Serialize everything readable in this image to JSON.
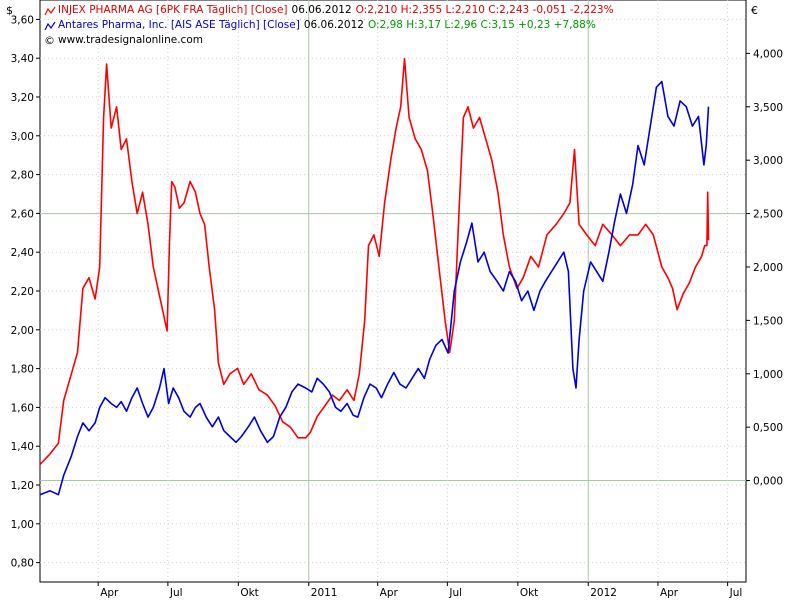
{
  "legend": {
    "row1": {
      "name": "INJEX PHARMA AG [6PK FRA  Täglich] [Close]",
      "date": "06.06.2012",
      "ohlc": "O:2,210 H:2,355 L:2,210 C:2,243 -0,051 -2,223%"
    },
    "row2": {
      "name": "Antares Pharma, Inc. [AIS ASE  Täglich] [Close]",
      "date": "06.06.2012",
      "ohlc": "O:2,98 H:3,17 L:2,96 C:3,15 +0,23 +7,88%"
    },
    "watermark": "www.tradesignalonline.com"
  },
  "colors": {
    "injex": "#ff0000",
    "antares": "#0000dd",
    "background": "#ffffff",
    "grid": "#c8d8c8"
  },
  "chart_data": {
    "type": "line",
    "title": "",
    "left_axis": {
      "unit": "$",
      "range": [
        0.7,
        3.7
      ],
      "ticks": [
        "0,80",
        "1,00",
        "1,20",
        "1,40",
        "1,60",
        "1,80",
        "2,00",
        "2,20",
        "2,40",
        "2,60",
        "2,80",
        "3,00",
        "3,20",
        "3,40",
        "3,60"
      ]
    },
    "right_axis": {
      "unit": "€",
      "range": [
        -0.95,
        4.5
      ],
      "ticks": [
        "0,000",
        "0,500",
        "1,000",
        "1,500",
        "2,000",
        "2,500",
        "3,000",
        "3,500",
        "4,000"
      ]
    },
    "x_axis": {
      "labels": [
        "Apr",
        "Jul",
        "Okt",
        "2011",
        "Apr",
        "Jul",
        "Okt",
        "2012",
        "Apr",
        "Jul"
      ],
      "label_dates": [
        "2010-04-01",
        "2010-07-01",
        "2010-10-01",
        "2011-01-01",
        "2011-04-01",
        "2011-07-01",
        "2011-10-01",
        "2012-01-01",
        "2012-04-01",
        "2012-07-01"
      ],
      "range": [
        "2010-01-15",
        "2012-07-25"
      ]
    },
    "series": [
      {
        "name": "INJEX PHARMA AG [6PK FRA  Täglich] [Close]",
        "axis": "right",
        "points": [
          [
            "2010-01-15",
            0.15
          ],
          [
            "2010-01-28",
            0.25
          ],
          [
            "2010-02-08",
            0.35
          ],
          [
            "2010-02-15",
            0.75
          ],
          [
            "2010-02-25",
            1.0
          ],
          [
            "2010-03-05",
            1.2
          ],
          [
            "2010-03-12",
            1.8
          ],
          [
            "2010-03-20",
            1.9
          ],
          [
            "2010-03-28",
            1.7
          ],
          [
            "2010-04-03",
            2.0
          ],
          [
            "2010-04-08",
            3.4
          ],
          [
            "2010-04-12",
            3.9
          ],
          [
            "2010-04-18",
            3.3
          ],
          [
            "2010-04-25",
            3.5
          ],
          [
            "2010-05-01",
            3.1
          ],
          [
            "2010-05-08",
            3.2
          ],
          [
            "2010-05-15",
            2.8
          ],
          [
            "2010-05-22",
            2.5
          ],
          [
            "2010-05-29",
            2.7
          ],
          [
            "2010-06-05",
            2.4
          ],
          [
            "2010-06-12",
            2.0
          ],
          [
            "2010-06-18",
            1.8
          ],
          [
            "2010-06-24",
            1.6
          ],
          [
            "2010-06-30",
            1.4
          ],
          [
            "2010-07-03",
            2.2
          ],
          [
            "2010-07-06",
            2.8
          ],
          [
            "2010-07-10",
            2.75
          ],
          [
            "2010-07-16",
            2.55
          ],
          [
            "2010-07-22",
            2.6
          ],
          [
            "2010-07-30",
            2.8
          ],
          [
            "2010-08-06",
            2.7
          ],
          [
            "2010-08-12",
            2.5
          ],
          [
            "2010-08-18",
            2.4
          ],
          [
            "2010-08-24",
            2.0
          ],
          [
            "2010-08-31",
            1.6
          ],
          [
            "2010-09-05",
            1.1
          ],
          [
            "2010-09-12",
            0.9
          ],
          [
            "2010-09-20",
            1.0
          ],
          [
            "2010-09-30",
            1.05
          ],
          [
            "2010-10-08",
            0.9
          ],
          [
            "2010-10-18",
            1.0
          ],
          [
            "2010-10-28",
            0.85
          ],
          [
            "2010-11-08",
            0.8
          ],
          [
            "2010-11-18",
            0.7
          ],
          [
            "2010-11-28",
            0.55
          ],
          [
            "2010-12-08",
            0.5
          ],
          [
            "2010-12-18",
            0.4
          ],
          [
            "2010-12-28",
            0.4
          ],
          [
            "2011-01-03",
            0.45
          ],
          [
            "2011-01-12",
            0.6
          ],
          [
            "2011-01-22",
            0.7
          ],
          [
            "2011-02-01",
            0.8
          ],
          [
            "2011-02-10",
            0.75
          ],
          [
            "2011-02-20",
            0.85
          ],
          [
            "2011-03-01",
            0.75
          ],
          [
            "2011-03-08",
            1.0
          ],
          [
            "2011-03-15",
            1.5
          ],
          [
            "2011-03-20",
            2.2
          ],
          [
            "2011-03-27",
            2.3
          ],
          [
            "2011-04-03",
            2.1
          ],
          [
            "2011-04-10",
            2.6
          ],
          [
            "2011-04-18",
            3.0
          ],
          [
            "2011-04-25",
            3.3
          ],
          [
            "2011-05-01",
            3.5
          ],
          [
            "2011-05-06",
            3.95
          ],
          [
            "2011-05-12",
            3.4
          ],
          [
            "2011-05-20",
            3.2
          ],
          [
            "2011-05-28",
            3.1
          ],
          [
            "2011-06-05",
            2.9
          ],
          [
            "2011-06-12",
            2.5
          ],
          [
            "2011-06-20",
            2.0
          ],
          [
            "2011-06-28",
            1.5
          ],
          [
            "2011-07-04",
            1.2
          ],
          [
            "2011-07-10",
            1.5
          ],
          [
            "2011-07-16",
            2.5
          ],
          [
            "2011-07-22",
            3.4
          ],
          [
            "2011-07-28",
            3.5
          ],
          [
            "2011-08-04",
            3.3
          ],
          [
            "2011-08-12",
            3.4
          ],
          [
            "2011-08-20",
            3.2
          ],
          [
            "2011-08-28",
            3.0
          ],
          [
            "2011-09-05",
            2.7
          ],
          [
            "2011-09-12",
            2.3
          ],
          [
            "2011-09-20",
            2.0
          ],
          [
            "2011-09-30",
            1.8
          ],
          [
            "2011-10-08",
            1.9
          ],
          [
            "2011-10-18",
            2.1
          ],
          [
            "2011-10-28",
            2.0
          ],
          [
            "2011-11-08",
            2.3
          ],
          [
            "2011-11-20",
            2.4
          ],
          [
            "2011-11-30",
            2.5
          ],
          [
            "2011-12-08",
            2.6
          ],
          [
            "2011-12-14",
            3.1
          ],
          [
            "2011-12-20",
            2.4
          ],
          [
            "2011-12-30",
            2.3
          ],
          [
            "2012-01-10",
            2.2
          ],
          [
            "2012-01-20",
            2.4
          ],
          [
            "2012-02-01",
            2.3
          ],
          [
            "2012-02-12",
            2.2
          ],
          [
            "2012-02-24",
            2.3
          ],
          [
            "2012-03-06",
            2.3
          ],
          [
            "2012-03-16",
            2.4
          ],
          [
            "2012-03-26",
            2.3
          ],
          [
            "2012-04-06",
            2.0
          ],
          [
            "2012-04-14",
            1.9
          ],
          [
            "2012-04-20",
            1.8
          ],
          [
            "2012-04-26",
            1.6
          ],
          [
            "2012-05-04",
            1.75
          ],
          [
            "2012-05-12",
            1.85
          ],
          [
            "2012-05-20",
            2.0
          ],
          [
            "2012-05-28",
            2.1
          ],
          [
            "2012-06-01",
            2.2
          ],
          [
            "2012-06-04",
            2.2
          ],
          [
            "2012-06-05",
            2.7
          ],
          [
            "2012-06-06",
            2.25
          ]
        ]
      },
      {
        "name": "Antares Pharma, Inc. [AIS ASE  Täglich] [Close]",
        "axis": "left",
        "points": [
          [
            "2010-01-15",
            1.15
          ],
          [
            "2010-01-28",
            1.17
          ],
          [
            "2010-02-08",
            1.15
          ],
          [
            "2010-02-15",
            1.25
          ],
          [
            "2010-02-25",
            1.35
          ],
          [
            "2010-03-05",
            1.45
          ],
          [
            "2010-03-12",
            1.52
          ],
          [
            "2010-03-20",
            1.48
          ],
          [
            "2010-03-28",
            1.52
          ],
          [
            "2010-04-03",
            1.6
          ],
          [
            "2010-04-10",
            1.65
          ],
          [
            "2010-04-18",
            1.62
          ],
          [
            "2010-04-25",
            1.6
          ],
          [
            "2010-05-01",
            1.63
          ],
          [
            "2010-05-08",
            1.58
          ],
          [
            "2010-05-15",
            1.65
          ],
          [
            "2010-05-22",
            1.7
          ],
          [
            "2010-05-29",
            1.62
          ],
          [
            "2010-06-05",
            1.55
          ],
          [
            "2010-06-12",
            1.6
          ],
          [
            "2010-06-20",
            1.7
          ],
          [
            "2010-06-26",
            1.8
          ],
          [
            "2010-07-02",
            1.62
          ],
          [
            "2010-07-08",
            1.7
          ],
          [
            "2010-07-15",
            1.65
          ],
          [
            "2010-07-22",
            1.58
          ],
          [
            "2010-07-30",
            1.55
          ],
          [
            "2010-08-06",
            1.6
          ],
          [
            "2010-08-12",
            1.62
          ],
          [
            "2010-08-20",
            1.55
          ],
          [
            "2010-08-28",
            1.5
          ],
          [
            "2010-09-05",
            1.55
          ],
          [
            "2010-09-12",
            1.48
          ],
          [
            "2010-09-20",
            1.45
          ],
          [
            "2010-09-28",
            1.42
          ],
          [
            "2010-10-05",
            1.45
          ],
          [
            "2010-10-14",
            1.5
          ],
          [
            "2010-10-22",
            1.55
          ],
          [
            "2010-10-30",
            1.48
          ],
          [
            "2010-11-08",
            1.42
          ],
          [
            "2010-11-16",
            1.45
          ],
          [
            "2010-11-24",
            1.55
          ],
          [
            "2010-12-02",
            1.6
          ],
          [
            "2010-12-10",
            1.68
          ],
          [
            "2010-12-18",
            1.72
          ],
          [
            "2010-12-28",
            1.7
          ],
          [
            "2011-01-05",
            1.68
          ],
          [
            "2011-01-12",
            1.75
          ],
          [
            "2011-01-20",
            1.72
          ],
          [
            "2011-01-28",
            1.68
          ],
          [
            "2011-02-05",
            1.6
          ],
          [
            "2011-02-12",
            1.58
          ],
          [
            "2011-02-20",
            1.62
          ],
          [
            "2011-02-28",
            1.56
          ],
          [
            "2011-03-06",
            1.55
          ],
          [
            "2011-03-14",
            1.65
          ],
          [
            "2011-03-22",
            1.72
          ],
          [
            "2011-03-30",
            1.7
          ],
          [
            "2011-04-06",
            1.65
          ],
          [
            "2011-04-14",
            1.72
          ],
          [
            "2011-04-22",
            1.78
          ],
          [
            "2011-04-30",
            1.72
          ],
          [
            "2011-05-08",
            1.7
          ],
          [
            "2011-05-16",
            1.75
          ],
          [
            "2011-05-24",
            1.8
          ],
          [
            "2011-06-01",
            1.75
          ],
          [
            "2011-06-08",
            1.85
          ],
          [
            "2011-06-16",
            1.92
          ],
          [
            "2011-06-24",
            1.95
          ],
          [
            "2011-07-02",
            1.88
          ],
          [
            "2011-07-10",
            2.2
          ],
          [
            "2011-07-18",
            2.35
          ],
          [
            "2011-07-26",
            2.45
          ],
          [
            "2011-08-02",
            2.55
          ],
          [
            "2011-08-10",
            2.35
          ],
          [
            "2011-08-18",
            2.4
          ],
          [
            "2011-08-26",
            2.3
          ],
          [
            "2011-09-04",
            2.25
          ],
          [
            "2011-09-12",
            2.2
          ],
          [
            "2011-09-20",
            2.3
          ],
          [
            "2011-09-28",
            2.25
          ],
          [
            "2011-10-06",
            2.15
          ],
          [
            "2011-10-14",
            2.2
          ],
          [
            "2011-10-22",
            2.1
          ],
          [
            "2011-10-30",
            2.2
          ],
          [
            "2011-11-06",
            2.25
          ],
          [
            "2011-11-14",
            2.3
          ],
          [
            "2011-11-22",
            2.35
          ],
          [
            "2011-11-30",
            2.4
          ],
          [
            "2011-12-06",
            2.3
          ],
          [
            "2011-12-12",
            1.8
          ],
          [
            "2011-12-16",
            1.7
          ],
          [
            "2011-12-20",
            1.95
          ],
          [
            "2011-12-26",
            2.2
          ],
          [
            "2012-01-04",
            2.35
          ],
          [
            "2012-01-12",
            2.3
          ],
          [
            "2012-01-20",
            2.25
          ],
          [
            "2012-01-28",
            2.4
          ],
          [
            "2012-02-04",
            2.55
          ],
          [
            "2012-02-12",
            2.7
          ],
          [
            "2012-02-20",
            2.6
          ],
          [
            "2012-02-28",
            2.75
          ],
          [
            "2012-03-06",
            2.95
          ],
          [
            "2012-03-14",
            2.85
          ],
          [
            "2012-03-22",
            3.05
          ],
          [
            "2012-03-30",
            3.25
          ],
          [
            "2012-04-06",
            3.28
          ],
          [
            "2012-04-14",
            3.1
          ],
          [
            "2012-04-22",
            3.05
          ],
          [
            "2012-04-30",
            3.18
          ],
          [
            "2012-05-08",
            3.15
          ],
          [
            "2012-05-16",
            3.05
          ],
          [
            "2012-05-24",
            3.1
          ],
          [
            "2012-05-31",
            2.85
          ],
          [
            "2012-06-03",
            2.95
          ],
          [
            "2012-06-06",
            3.15
          ]
        ]
      }
    ]
  }
}
